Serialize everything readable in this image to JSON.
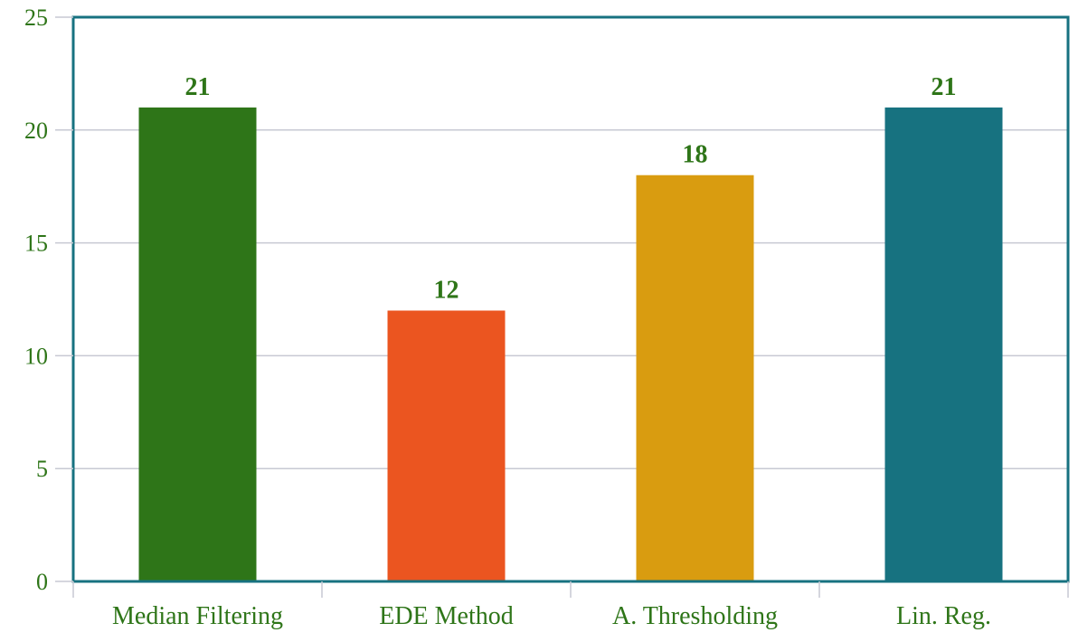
{
  "chart_data": {
    "type": "bar",
    "title": "",
    "xlabel": "",
    "ylabel": "",
    "categories": [
      "Median Filtering",
      "EDE Method",
      "A. Thresholding",
      "Lin. Reg."
    ],
    "values": [
      21,
      12,
      18,
      21
    ],
    "data_labels": [
      "21",
      "12",
      "18",
      "21"
    ],
    "bar_colors": [
      "#2e7518",
      "#eb5520",
      "#d99c10",
      "#177280"
    ],
    "ylim": [
      0,
      25
    ],
    "yticks": [
      0,
      5,
      10,
      15,
      20,
      25
    ],
    "ytick_labels": [
      "0",
      "5",
      "10",
      "15",
      "20",
      "25"
    ],
    "grid": true,
    "legend": "none"
  },
  "colors": {
    "text": "#2e7518",
    "frame": "#177280",
    "grid": "#c7c9d3",
    "tick": "#c7c9d3"
  }
}
